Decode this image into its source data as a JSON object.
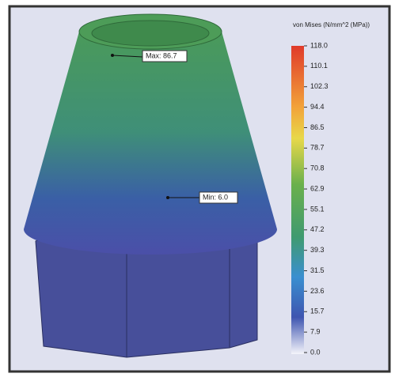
{
  "legend": {
    "title": "von Mises (N/mm^2 (MPa))",
    "ticks": [
      "118.0",
      "110.1",
      "102.3",
      "94.4",
      "86.5",
      "78.7",
      "70.8",
      "62.9",
      "55.1",
      "47.2",
      "39.3",
      "31.5",
      "23.6",
      "15.7",
      "7.9",
      "0.0"
    ]
  },
  "annotations": [
    {
      "label": "Max: 86.7"
    },
    {
      "label": "Min: 6.0"
    }
  ]
}
